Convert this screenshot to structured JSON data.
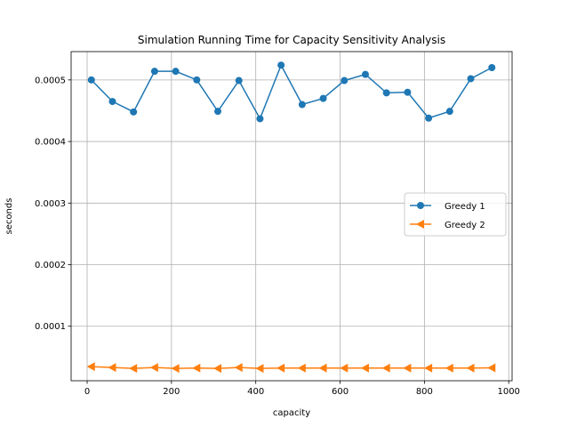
{
  "chart_data": {
    "type": "line",
    "title": "Simulation Running Time for Capacity Sensitivity Analysis",
    "xlabel": "capacity",
    "ylabel": "seconds",
    "xlim": [
      -38,
      1008
    ],
    "ylim": [
      1.15e-05,
      0.000546
    ],
    "xticks": [
      0,
      200,
      400,
      600,
      800,
      1000
    ],
    "xtick_labels": [
      "0",
      "200",
      "400",
      "600",
      "800",
      "1000"
    ],
    "yticks": [
      0.0001,
      0.0002,
      0.0003,
      0.0004,
      0.0005
    ],
    "ytick_labels": [
      "0.0001",
      "0.0002",
      "0.0003",
      "0.0004",
      "0.0005"
    ],
    "grid": true,
    "legend_position": "center-right",
    "x": [
      10,
      60,
      110,
      160,
      210,
      260,
      310,
      360,
      410,
      460,
      510,
      560,
      610,
      660,
      710,
      760,
      810,
      860,
      910,
      960
    ],
    "series": [
      {
        "name": "Greedy 1",
        "color": "#1f77b4",
        "marker": "circle",
        "values": [
          0.0005,
          0.000465,
          0.000448,
          0.000514,
          0.000514,
          0.0005,
          0.000449,
          0.000499,
          0.000437,
          0.000524,
          0.00046,
          0.00047,
          0.000499,
          0.000509,
          0.000479,
          0.00048,
          0.000438,
          0.000449,
          0.000502,
          0.00052
        ]
      },
      {
        "name": "Greedy 2",
        "color": "#ff7f0e",
        "marker": "triangle-left",
        "values": [
          3.45e-05,
          3.3e-05,
          3.15e-05,
          3.3e-05,
          3.15e-05,
          3.2e-05,
          3.15e-05,
          3.3e-05,
          3.15e-05,
          3.2e-05,
          3.2e-05,
          3.2e-05,
          3.2e-05,
          3.2e-05,
          3.2e-05,
          3.2e-05,
          3.2e-05,
          3.2e-05,
          3.2e-05,
          3.25e-05
        ]
      }
    ]
  }
}
